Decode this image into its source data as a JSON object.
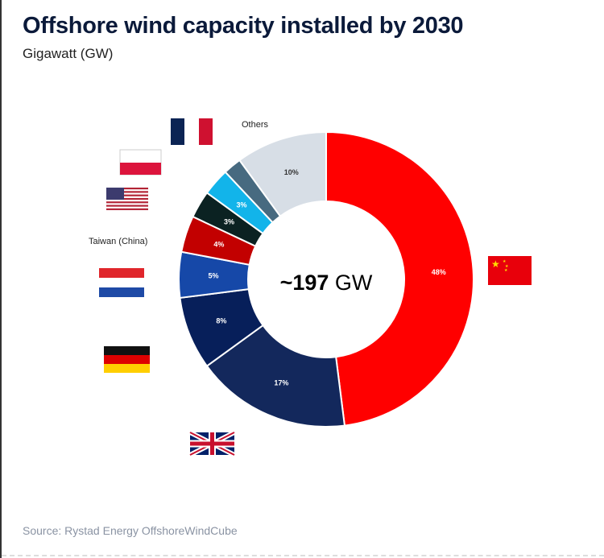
{
  "title": "Offshore wind capacity installed by 2030",
  "subtitle": "Gigawatt (GW)",
  "source": "Source: Rystad Energy OffshoreWindCube",
  "chart_data": {
    "type": "pie",
    "style": "donut",
    "title": "Offshore wind capacity installed by 2030",
    "subtitle": "Gigawatt (GW)",
    "center_label": {
      "value": "~197",
      "unit": "GW"
    },
    "categories": [
      "China",
      "United Kingdom",
      "Germany",
      "Netherlands",
      "Taiwan (China)",
      "United States",
      "Poland",
      "France",
      "Others"
    ],
    "values": [
      48,
      17,
      8,
      5,
      4,
      3,
      3,
      2,
      10
    ],
    "labels": [
      "48%",
      "17%",
      "8%",
      "5%",
      "4%",
      "3%",
      "3%",
      "",
      "10%"
    ],
    "colors": [
      "#ff0000",
      "#13285c",
      "#071f5a",
      "#1648a8",
      "#c20000",
      "#0b2222",
      "#12b4ea",
      "#476a80",
      "#d7dee6"
    ],
    "label_colors": [
      "#fff",
      "#fff",
      "#fff",
      "#fff",
      "#fff",
      "#fff",
      "#fff",
      "#fff",
      "#333"
    ],
    "text_labels_shown": {
      "4": "Taiwan (China)",
      "8": "Others"
    },
    "legend": "flags around the ring"
  }
}
